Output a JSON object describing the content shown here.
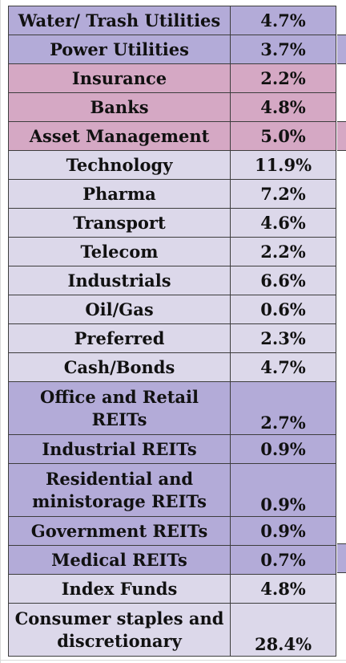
{
  "colors": {
    "utilities": "#b3abd8",
    "financials": "#d5a8c4",
    "general": "#dcd8ea",
    "reits": "#b3abd8",
    "index": "#dcd8ea",
    "consumer": "#dcd8ea"
  },
  "rows": [
    {
      "category": "Water/ Trash Utilities",
      "percent": "4.7%",
      "group": "utilities"
    },
    {
      "category": "Power Utilities",
      "percent": "3.7%",
      "group": "utilities"
    },
    {
      "category": "Insurance",
      "percent": "2.2%",
      "group": "financials"
    },
    {
      "category": "Banks",
      "percent": "4.8%",
      "group": "financials"
    },
    {
      "category": "Asset Management",
      "percent": "5.0%",
      "group": "financials"
    },
    {
      "category": "Technology",
      "percent": "11.9%",
      "group": "general"
    },
    {
      "category": "Pharma",
      "percent": "7.2%",
      "group": "general"
    },
    {
      "category": "Transport",
      "percent": "4.6%",
      "group": "general"
    },
    {
      "category": "Telecom",
      "percent": "2.2%",
      "group": "general"
    },
    {
      "category": "Industrials",
      "percent": "6.6%",
      "group": "general"
    },
    {
      "category": "Oil/Gas",
      "percent": "0.6%",
      "group": "general"
    },
    {
      "category": "Preferred",
      "percent": "2.3%",
      "group": "general"
    },
    {
      "category": "Cash/Bonds",
      "percent": "4.7%",
      "group": "general"
    },
    {
      "category": "Office and Retail REITs",
      "percent": "2.7%",
      "group": "reits"
    },
    {
      "category": "Industrial REITs",
      "percent": "0.9%",
      "group": "reits"
    },
    {
      "category": "Residential and ministorage REITs",
      "percent": "0.9%",
      "group": "reits"
    },
    {
      "category": "Government REITs",
      "percent": "0.9%",
      "group": "reits"
    },
    {
      "category": "Medical REITs",
      "percent": "0.7%",
      "group": "reits"
    },
    {
      "category": "Index Funds",
      "percent": "4.8%",
      "group": "index"
    },
    {
      "category": "Consumer staples and discretionary",
      "percent": "28.4%",
      "group": "consumer"
    }
  ]
}
